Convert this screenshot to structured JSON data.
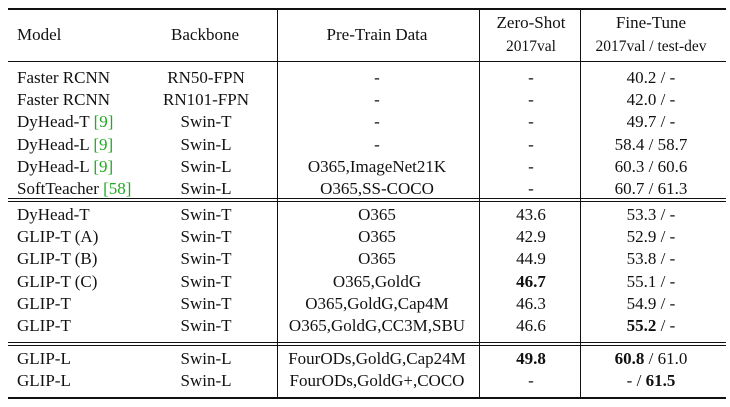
{
  "header": {
    "model": "Model",
    "backbone": "Backbone",
    "pretrain": "Pre-Train Data",
    "zeroshot": "Zero-Shot",
    "finetune": "Fine-Tune",
    "zeroshot_sub": "2017val",
    "finetune_sub": "2017val / test-dev"
  },
  "groups": [
    {
      "rows": [
        {
          "model": "Faster RCNN",
          "ref": "",
          "backbone": "RN50-FPN",
          "pretrain": "-",
          "zs": "-",
          "ft_a": "40.2",
          "ft_b": "-",
          "zs_bold": false,
          "fta_bold": false,
          "ftb_bold": false
        },
        {
          "model": "Faster RCNN",
          "ref": "",
          "backbone": "RN101-FPN",
          "pretrain": "-",
          "zs": "-",
          "ft_a": "42.0",
          "ft_b": "-",
          "zs_bold": false,
          "fta_bold": false,
          "ftb_bold": false
        },
        {
          "model": "DyHead-T ",
          "ref": "[9]",
          "backbone": "Swin-T",
          "pretrain": "-",
          "zs": "-",
          "ft_a": "49.7",
          "ft_b": "-",
          "zs_bold": false,
          "fta_bold": false,
          "ftb_bold": false
        },
        {
          "model": "DyHead-L ",
          "ref": "[9]",
          "backbone": "Swin-L",
          "pretrain": "-",
          "zs": "-",
          "ft_a": "58.4",
          "ft_b": "58.7",
          "zs_bold": false,
          "fta_bold": false,
          "ftb_bold": false
        },
        {
          "model": "DyHead-L ",
          "ref": "[9]",
          "backbone": "Swin-L",
          "pretrain": "O365,ImageNet21K",
          "zs": "-",
          "ft_a": "60.3",
          "ft_b": "60.6",
          "zs_bold": false,
          "fta_bold": false,
          "ftb_bold": false
        },
        {
          "model": "SoftTeacher ",
          "ref": "[58]",
          "backbone": "Swin-L",
          "pretrain": "O365,SS-COCO",
          "zs": "-",
          "ft_a": "60.7",
          "ft_b": "61.3",
          "zs_bold": false,
          "fta_bold": false,
          "ftb_bold": false
        }
      ]
    },
    {
      "rows": [
        {
          "model": "DyHead-T",
          "ref": "",
          "backbone": "Swin-T",
          "pretrain": "O365",
          "zs": "43.6",
          "ft_a": "53.3",
          "ft_b": "-",
          "zs_bold": false,
          "fta_bold": false,
          "ftb_bold": false
        },
        {
          "model": "GLIP-T (A)",
          "ref": "",
          "backbone": "Swin-T",
          "pretrain": "O365",
          "zs": "42.9",
          "ft_a": "52.9",
          "ft_b": "-",
          "zs_bold": false,
          "fta_bold": false,
          "ftb_bold": false
        },
        {
          "model": "GLIP-T (B)",
          "ref": "",
          "backbone": "Swin-T",
          "pretrain": "O365",
          "zs": "44.9",
          "ft_a": "53.8",
          "ft_b": "-",
          "zs_bold": false,
          "fta_bold": false,
          "ftb_bold": false
        },
        {
          "model": "GLIP-T (C)",
          "ref": "",
          "backbone": "Swin-T",
          "pretrain": "O365,GoldG",
          "zs": "46.7",
          "ft_a": "55.1",
          "ft_b": "-",
          "zs_bold": true,
          "fta_bold": false,
          "ftb_bold": false
        },
        {
          "model": "GLIP-T",
          "ref": "",
          "backbone": "Swin-T",
          "pretrain": "O365,GoldG,Cap4M",
          "zs": "46.3",
          "ft_a": "54.9",
          "ft_b": "-",
          "zs_bold": false,
          "fta_bold": false,
          "ftb_bold": false
        },
        {
          "model": "GLIP-T",
          "ref": "",
          "backbone": "Swin-T",
          "pretrain": "O365,GoldG,CC3M,SBU",
          "zs": "46.6",
          "ft_a": "55.2",
          "ft_b": "-",
          "zs_bold": false,
          "fta_bold": true,
          "ftb_bold": false
        }
      ]
    },
    {
      "rows": [
        {
          "model": "GLIP-L",
          "ref": "",
          "backbone": "Swin-L",
          "pretrain": "FourODs,GoldG,Cap24M",
          "zs": "49.8",
          "ft_a": "60.8",
          "ft_b": "61.0",
          "zs_bold": true,
          "fta_bold": true,
          "ftb_bold": false
        },
        {
          "model": "GLIP-L",
          "ref": "",
          "backbone": "Swin-L",
          "pretrain": "FourODs,GoldG+,COCO",
          "zs": "-",
          "ft_a": "-",
          "ft_b": "61.5",
          "zs_bold": false,
          "fta_bold": false,
          "ftb_bold": true
        }
      ]
    }
  ]
}
